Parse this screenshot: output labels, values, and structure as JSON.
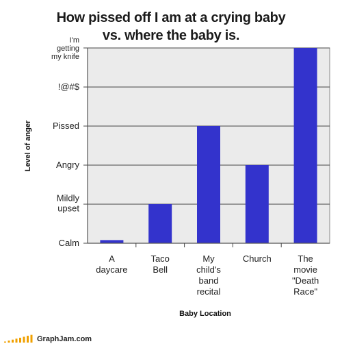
{
  "chart_data": {
    "type": "bar",
    "title": [
      "How pissed off I am at a crying baby",
      "vs. where the baby is."
    ],
    "xlabel": "Baby Location",
    "ylabel": "Level of anger",
    "y_levels": [
      [
        "Calm"
      ],
      [
        "Mildly",
        "upset"
      ],
      [
        "Angry"
      ],
      [
        "Pissed"
      ],
      [
        "!@#$"
      ],
      [
        "I'm",
        "getting",
        "my knife"
      ]
    ],
    "categories": [
      [
        "A",
        "daycare"
      ],
      [
        "Taco",
        "Bell"
      ],
      [
        "My",
        "child's",
        "band",
        "recital"
      ],
      [
        "Church"
      ],
      [
        "The",
        "movie",
        "\"Death",
        "Race\""
      ]
    ],
    "values": [
      0.08,
      1,
      3,
      2,
      5
    ],
    "ylim": [
      0,
      5
    ],
    "bar_color": "#3333cc",
    "plot_background": "#ebebeb",
    "grid": true
  },
  "watermark": {
    "text": "GraphJam.com",
    "color": "#f0a000"
  }
}
